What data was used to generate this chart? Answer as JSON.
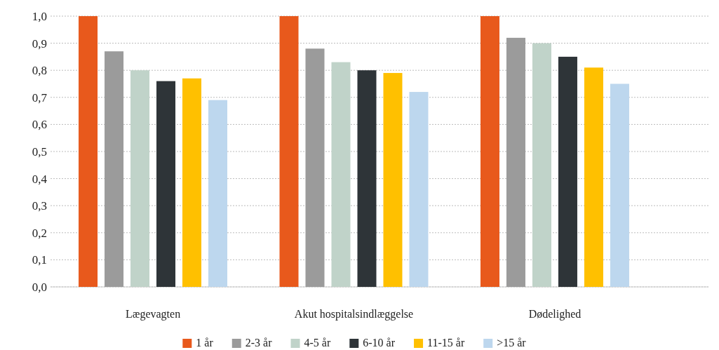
{
  "chart_data": {
    "type": "bar",
    "categories": [
      "Lægevagten",
      "Akut hospitalsindlæggelse",
      "Dødelighed"
    ],
    "series": [
      {
        "name": "1 år",
        "color": "#e8591c",
        "values": [
          1.0,
          1.0,
          1.0
        ]
      },
      {
        "name": "2-3 år",
        "color": "#9b9b9b",
        "values": [
          0.87,
          0.88,
          0.92
        ]
      },
      {
        "name": "4-5 år",
        "color": "#c0d3c9",
        "values": [
          0.8,
          0.83,
          0.9
        ]
      },
      {
        "name": "6-10 år",
        "color": "#2e3438",
        "values": [
          0.76,
          0.8,
          0.85
        ]
      },
      {
        "name": "11-15 år",
        "color": "#ffc000",
        "values": [
          0.77,
          0.79,
          0.81
        ]
      },
      {
        "name": ">15 år",
        "color": "#bdd7ee",
        "values": [
          0.69,
          0.72,
          0.75
        ]
      }
    ],
    "ylim": [
      0,
      1
    ],
    "yticks": [
      {
        "value": 0,
        "label": "0,0"
      },
      {
        "value": 0.1,
        "label": "0,1"
      },
      {
        "value": 0.2,
        "label": "0,2"
      },
      {
        "value": 0.3,
        "label": "0,3"
      },
      {
        "value": 0.4,
        "label": "0,4"
      },
      {
        "value": 0.5,
        "label": "0,5"
      },
      {
        "value": 0.6,
        "label": "0,6"
      },
      {
        "value": 0.7,
        "label": "0,7"
      },
      {
        "value": 0.8,
        "label": "0,8"
      },
      {
        "value": 0.9,
        "label": "0,9"
      },
      {
        "value": 1,
        "label": "1,0"
      }
    ],
    "grid": "y",
    "legend": "bottom"
  }
}
